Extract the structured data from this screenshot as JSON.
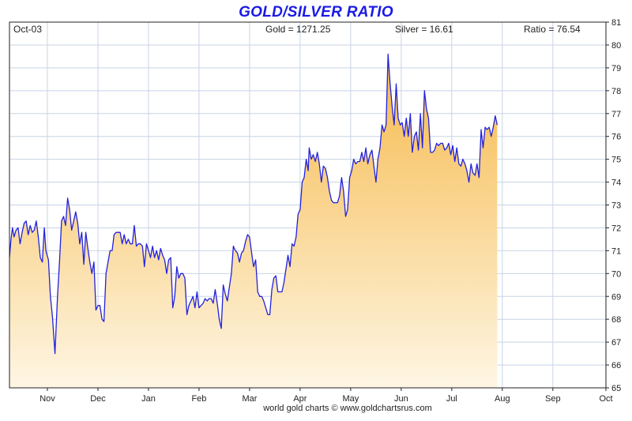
{
  "chart_data": {
    "type": "area",
    "title": "GOLD/SILVER RATIO",
    "header": {
      "date": "Oct-03",
      "gold": "Gold = 1271.25",
      "silver": "Silver = 16.61",
      "ratio": "Ratio = 76.54"
    },
    "credit": "world gold charts © www.goldchartsrus.com",
    "xlabel": "",
    "ylabel": "",
    "ylim": [
      65,
      81
    ],
    "yticks": [
      65,
      66,
      67,
      68,
      69,
      70,
      71,
      72,
      73,
      74,
      75,
      76,
      77,
      78,
      79,
      80,
      81
    ],
    "y_axis_side": "right",
    "grid": true,
    "legend": "none",
    "month_ticks": [
      {
        "label": "Nov",
        "x": 0.5
      },
      {
        "label": "Dec",
        "x": 1.5
      },
      {
        "label": "Jan",
        "x": 2.5
      },
      {
        "label": "Feb",
        "x": 3.5
      },
      {
        "label": "Mar",
        "x": 4.5
      },
      {
        "label": "Apr",
        "x": 5.5
      },
      {
        "label": "May",
        "x": 6.5
      },
      {
        "label": "Jun",
        "x": 7.5
      },
      {
        "label": "Jul",
        "x": 8.5
      },
      {
        "label": "Aug",
        "x": 9.5
      },
      {
        "label": "Sep",
        "x": 10.5
      },
      {
        "label": "Oct",
        "x": 11.55
      }
    ],
    "xlim": [
      -0.25,
      11.55
    ],
    "colors": {
      "line": "#2222dd",
      "fill_top": "#f6b94a",
      "fill_bottom": "#fef6e4",
      "title": "#1a1ae6",
      "grid": "#c8d4e6"
    },
    "series": [
      {
        "values": [
          [
            -0.25,
            70.7
          ],
          [
            -0.22,
            71.5
          ],
          [
            -0.19,
            72.0
          ],
          [
            -0.16,
            71.6
          ],
          [
            -0.12,
            71.9
          ],
          [
            -0.08,
            72.0
          ],
          [
            -0.04,
            71.3
          ],
          [
            0.0,
            71.8
          ],
          [
            0.04,
            72.2
          ],
          [
            0.08,
            72.3
          ],
          [
            0.12,
            71.7
          ],
          [
            0.16,
            72.1
          ],
          [
            0.2,
            71.8
          ],
          [
            0.24,
            71.9
          ],
          [
            0.28,
            72.3
          ],
          [
            0.32,
            71.6
          ],
          [
            0.36,
            70.7
          ],
          [
            0.4,
            70.5
          ],
          [
            0.44,
            72.0
          ],
          [
            0.47,
            71.0
          ],
          [
            0.52,
            70.6
          ],
          [
            0.56,
            69.0
          ],
          [
            0.6,
            68.1
          ],
          [
            0.65,
            66.5
          ],
          [
            0.7,
            69.0
          ],
          [
            0.74,
            70.5
          ],
          [
            0.78,
            72.3
          ],
          [
            0.82,
            72.5
          ],
          [
            0.86,
            72.1
          ],
          [
            0.9,
            73.3
          ],
          [
            0.94,
            72.8
          ],
          [
            0.98,
            71.9
          ],
          [
            1.02,
            72.3
          ],
          [
            1.06,
            72.7
          ],
          [
            1.1,
            72.2
          ],
          [
            1.14,
            71.3
          ],
          [
            1.18,
            71.8
          ],
          [
            1.22,
            70.4
          ],
          [
            1.26,
            71.8
          ],
          [
            1.3,
            71.1
          ],
          [
            1.34,
            70.5
          ],
          [
            1.38,
            70.0
          ],
          [
            1.42,
            70.5
          ],
          [
            1.46,
            68.4
          ],
          [
            1.5,
            68.6
          ],
          [
            1.54,
            68.6
          ],
          [
            1.58,
            68.0
          ],
          [
            1.62,
            67.9
          ],
          [
            1.66,
            70.0
          ],
          [
            1.7,
            70.5
          ],
          [
            1.74,
            71.0
          ],
          [
            1.78,
            71.0
          ],
          [
            1.82,
            71.7
          ],
          [
            1.86,
            71.8
          ],
          [
            1.9,
            71.8
          ],
          [
            1.94,
            71.8
          ],
          [
            1.98,
            71.3
          ],
          [
            2.02,
            71.7
          ],
          [
            2.06,
            71.3
          ],
          [
            2.1,
            71.5
          ],
          [
            2.14,
            71.3
          ],
          [
            2.18,
            71.3
          ],
          [
            2.22,
            72.1
          ],
          [
            2.26,
            71.2
          ],
          [
            2.3,
            71.3
          ],
          [
            2.34,
            71.3
          ],
          [
            2.38,
            71.2
          ],
          [
            2.42,
            70.3
          ],
          [
            2.46,
            71.3
          ],
          [
            2.5,
            71.0
          ],
          [
            2.54,
            70.7
          ],
          [
            2.58,
            71.2
          ],
          [
            2.62,
            70.7
          ],
          [
            2.66,
            71.0
          ],
          [
            2.7,
            70.6
          ],
          [
            2.74,
            71.1
          ],
          [
            2.78,
            70.8
          ],
          [
            2.82,
            70.6
          ],
          [
            2.86,
            70.0
          ],
          [
            2.9,
            70.6
          ],
          [
            2.94,
            70.7
          ],
          [
            2.98,
            68.5
          ],
          [
            3.02,
            69.0
          ],
          [
            3.06,
            70.3
          ],
          [
            3.1,
            69.8
          ],
          [
            3.14,
            70.0
          ],
          [
            3.18,
            70.0
          ],
          [
            3.22,
            69.8
          ],
          [
            3.26,
            68.2
          ],
          [
            3.3,
            68.6
          ],
          [
            3.34,
            68.8
          ],
          [
            3.38,
            69.0
          ],
          [
            3.42,
            68.5
          ],
          [
            3.46,
            69.2
          ],
          [
            3.5,
            68.5
          ],
          [
            3.54,
            68.6
          ],
          [
            3.58,
            68.7
          ],
          [
            3.62,
            68.9
          ],
          [
            3.66,
            68.8
          ],
          [
            3.7,
            68.9
          ],
          [
            3.74,
            68.9
          ],
          [
            3.78,
            68.7
          ],
          [
            3.82,
            69.3
          ],
          [
            3.86,
            68.7
          ],
          [
            3.9,
            68.0
          ],
          [
            3.94,
            67.6
          ],
          [
            3.98,
            69.5
          ],
          [
            4.02,
            69.1
          ],
          [
            4.06,
            68.8
          ],
          [
            4.1,
            69.4
          ],
          [
            4.14,
            70.0
          ],
          [
            4.18,
            71.2
          ],
          [
            4.22,
            71.0
          ],
          [
            4.26,
            70.9
          ],
          [
            4.3,
            70.5
          ],
          [
            4.34,
            70.9
          ],
          [
            4.38,
            71.0
          ],
          [
            4.42,
            71.4
          ],
          [
            4.46,
            71.7
          ],
          [
            4.5,
            71.6
          ],
          [
            4.54,
            70.9
          ],
          [
            4.58,
            70.3
          ],
          [
            4.62,
            70.6
          ],
          [
            4.66,
            69.2
          ],
          [
            4.7,
            69.0
          ],
          [
            4.74,
            69.0
          ],
          [
            4.78,
            68.8
          ],
          [
            4.82,
            68.5
          ],
          [
            4.86,
            68.2
          ],
          [
            4.9,
            68.2
          ],
          [
            4.94,
            69.3
          ],
          [
            4.98,
            69.8
          ],
          [
            5.02,
            69.9
          ],
          [
            5.06,
            69.2
          ],
          [
            5.1,
            69.2
          ],
          [
            5.14,
            69.2
          ],
          [
            5.18,
            69.6
          ],
          [
            5.22,
            70.2
          ],
          [
            5.26,
            70.8
          ],
          [
            5.3,
            70.3
          ],
          [
            5.34,
            71.3
          ],
          [
            5.38,
            71.2
          ],
          [
            5.42,
            71.6
          ],
          [
            5.46,
            72.6
          ],
          [
            5.5,
            72.8
          ],
          [
            5.54,
            74.0
          ],
          [
            5.58,
            74.2
          ],
          [
            5.62,
            75.0
          ],
          [
            5.66,
            74.5
          ],
          [
            5.68,
            75.5
          ],
          [
            5.72,
            75.0
          ],
          [
            5.76,
            75.2
          ],
          [
            5.8,
            74.9
          ],
          [
            5.84,
            75.3
          ],
          [
            5.88,
            74.8
          ],
          [
            5.92,
            74.0
          ],
          [
            5.96,
            74.7
          ],
          [
            6.0,
            74.6
          ],
          [
            6.04,
            74.2
          ],
          [
            6.08,
            73.6
          ],
          [
            6.12,
            73.2
          ],
          [
            6.16,
            73.1
          ],
          [
            6.2,
            73.1
          ],
          [
            6.24,
            73.1
          ],
          [
            6.28,
            73.4
          ],
          [
            6.32,
            74.2
          ],
          [
            6.36,
            73.6
          ],
          [
            6.4,
            72.5
          ],
          [
            6.44,
            72.8
          ],
          [
            6.48,
            74.2
          ],
          [
            6.52,
            74.5
          ],
          [
            6.56,
            75.0
          ],
          [
            6.6,
            74.8
          ],
          [
            6.64,
            74.9
          ],
          [
            6.68,
            74.9
          ],
          [
            6.72,
            75.3
          ],
          [
            6.76,
            74.9
          ],
          [
            6.8,
            75.5
          ],
          [
            6.84,
            74.8
          ],
          [
            6.88,
            75.2
          ],
          [
            6.92,
            75.4
          ],
          [
            6.96,
            74.7
          ],
          [
            7.0,
            74.0
          ],
          [
            7.04,
            75.0
          ],
          [
            7.08,
            75.5
          ],
          [
            7.12,
            76.5
          ],
          [
            7.16,
            76.2
          ],
          [
            7.2,
            76.5
          ],
          [
            7.24,
            79.6
          ],
          [
            7.28,
            78.3
          ],
          [
            7.32,
            77.3
          ],
          [
            7.36,
            76.5
          ],
          [
            7.4,
            78.3
          ],
          [
            7.44,
            76.8
          ],
          [
            7.48,
            76.5
          ],
          [
            7.52,
            76.6
          ],
          [
            7.56,
            76.0
          ],
          [
            7.6,
            76.8
          ],
          [
            7.64,
            76.0
          ],
          [
            7.68,
            77.0
          ],
          [
            7.72,
            75.3
          ],
          [
            7.76,
            76.0
          ],
          [
            7.8,
            76.2
          ],
          [
            7.84,
            75.4
          ],
          [
            7.88,
            77.0
          ],
          [
            7.92,
            75.5
          ],
          [
            7.96,
            78.0
          ],
          [
            8.0,
            77.2
          ],
          [
            8.04,
            76.8
          ],
          [
            8.08,
            75.3
          ],
          [
            8.12,
            75.3
          ],
          [
            8.16,
            75.4
          ],
          [
            8.2,
            75.7
          ],
          [
            8.24,
            75.6
          ],
          [
            8.28,
            75.7
          ],
          [
            8.32,
            75.7
          ],
          [
            8.36,
            75.4
          ],
          [
            8.4,
            75.5
          ],
          [
            8.44,
            75.7
          ],
          [
            8.48,
            75.2
          ],
          [
            8.52,
            75.6
          ],
          [
            8.56,
            74.9
          ],
          [
            8.6,
            75.5
          ],
          [
            8.64,
            74.8
          ],
          [
            8.68,
            74.7
          ],
          [
            8.72,
            75.0
          ],
          [
            8.76,
            74.8
          ],
          [
            8.8,
            74.5
          ],
          [
            8.84,
            74.0
          ],
          [
            8.88,
            74.8
          ],
          [
            8.92,
            74.4
          ],
          [
            8.96,
            74.3
          ],
          [
            9.0,
            74.8
          ],
          [
            9.04,
            74.2
          ],
          [
            9.08,
            76.3
          ],
          [
            9.12,
            75.5
          ],
          [
            9.16,
            76.4
          ],
          [
            9.2,
            76.3
          ],
          [
            9.24,
            76.4
          ],
          [
            9.28,
            76.0
          ],
          [
            9.32,
            76.4
          ],
          [
            9.36,
            76.9
          ],
          [
            9.4,
            76.5
          ]
        ]
      }
    ]
  }
}
